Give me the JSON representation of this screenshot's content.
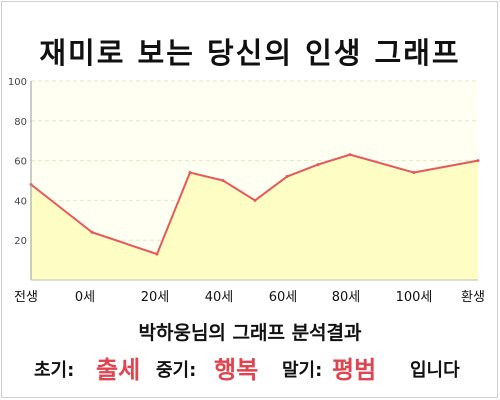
{
  "title": "재미로 보는 당신의 인생 그래프",
  "chart_data": {
    "type": "area",
    "title": "재미로 보는 당신의 인생 그래프",
    "ylim": [
      0,
      100
    ],
    "yticks": [
      20,
      40,
      60,
      80,
      100
    ],
    "xtick_labels": [
      "전생",
      "0세",
      "20세",
      "40세",
      "60세",
      "80세",
      "100세",
      "환생"
    ],
    "points": [
      {
        "x": "전생",
        "y": 48
      },
      {
        "x": "0세",
        "y": 24
      },
      {
        "x": "20세",
        "y": 13
      },
      {
        "x": "30세",
        "y": 54
      },
      {
        "x": "40세",
        "y": 50
      },
      {
        "x": "50세",
        "y": 40
      },
      {
        "x": "60세",
        "y": 52
      },
      {
        "x": "70세",
        "y": 58
      },
      {
        "x": "80세",
        "y": 63
      },
      {
        "x": "100세",
        "y": 54
      },
      {
        "x": "환생",
        "y": 60
      }
    ],
    "grid": true,
    "colors": {
      "line": "#e8585a",
      "fill": "#fdfdc4",
      "plot_bg": "#fffff2",
      "grid": "#e6e6c8"
    }
  },
  "result": {
    "subtitle": "박하웅님의 그래프 분석결과",
    "early_label": "초기:",
    "early_value": "출세",
    "mid_label": "중기:",
    "mid_value": "행복",
    "late_label": "말기:",
    "late_value": "평범",
    "ending": "입니다"
  }
}
